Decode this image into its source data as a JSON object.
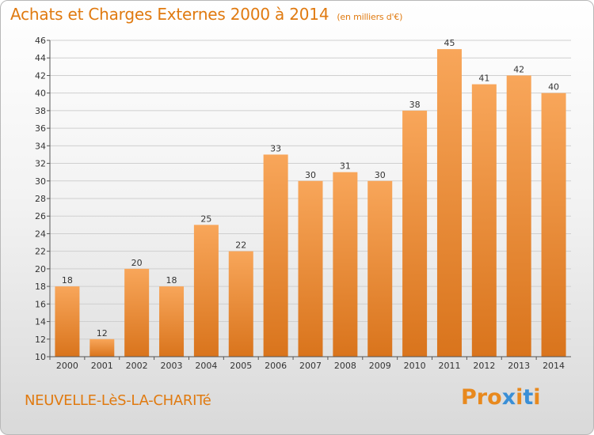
{
  "header": {
    "title": "Achats et Charges Externes 2000 à 2014",
    "subtitle": "(en milliers d'€)"
  },
  "footer": {
    "commune": "NEUVELLE-LèS-LA-CHARITé",
    "logo": "Proxiti"
  },
  "colors": {
    "title": "#e07a10",
    "bar_top": "#f8a65a",
    "bar_bottom": "#d9741c",
    "logo_letters": [
      "#e8891e",
      "#e8891e",
      "#e8891e",
      "#3a8fd6",
      "#e8891e",
      "#3a8fd6",
      "#e8891e"
    ]
  },
  "chart_data": {
    "type": "bar",
    "title": "Achats et Charges Externes 2000 à 2014",
    "subtitle": "(en milliers d'€)",
    "categories": [
      "2000",
      "2001",
      "2002",
      "2003",
      "2004",
      "2005",
      "2006",
      "2007",
      "2008",
      "2009",
      "2010",
      "2011",
      "2012",
      "2013",
      "2014"
    ],
    "values": [
      18,
      12,
      20,
      18,
      25,
      22,
      33,
      30,
      31,
      30,
      38,
      45,
      41,
      42,
      40
    ],
    "ylim": [
      10,
      46
    ],
    "yticks": [
      10,
      12,
      14,
      16,
      18,
      20,
      22,
      24,
      26,
      28,
      30,
      32,
      34,
      36,
      38,
      40,
      42,
      44,
      46
    ],
    "grid": true,
    "legend": "none"
  }
}
